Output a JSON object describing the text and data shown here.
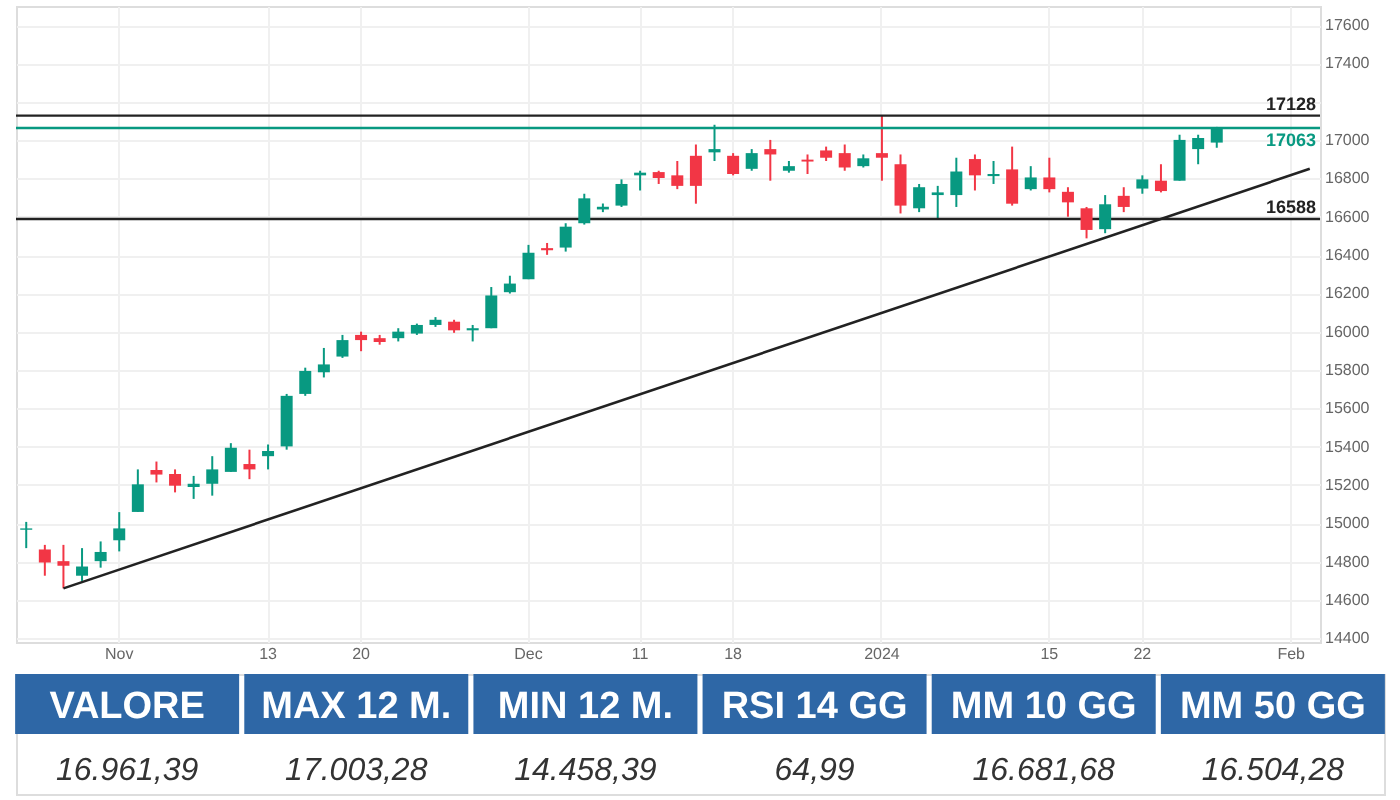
{
  "chart_data": [
    {
      "type": "candlestick",
      "categories": [
        null,
        null,
        null,
        null,
        null,
        "Nov",
        null,
        null,
        null,
        null,
        null,
        null,
        null,
        "13",
        null,
        null,
        null,
        null,
        "20",
        null,
        null,
        null,
        null,
        null,
        null,
        null,
        null,
        "Dec",
        null,
        null,
        null,
        null,
        null,
        "11",
        null,
        null,
        null,
        null,
        "18",
        null,
        null,
        null,
        null,
        null,
        null,
        null,
        "2024",
        null,
        null,
        null,
        null,
        null,
        null,
        null,
        null,
        "15",
        null,
        null,
        null,
        null,
        "22",
        null,
        null,
        null,
        null,
        null,
        null,
        null,
        "Feb",
        null
      ],
      "ohlc": [
        [
          14966,
          15007,
          14870,
          14973
        ],
        [
          14863,
          14887,
          14726,
          14795
        ],
        [
          14802,
          14887,
          14660,
          14778
        ],
        [
          14726,
          14870,
          14699,
          14774
        ],
        [
          14802,
          14905,
          14768,
          14850
        ],
        [
          14911,
          15058,
          14853,
          14973
        ],
        [
          15059,
          15281,
          15059,
          15203
        ],
        [
          15278,
          15322,
          15213,
          15254
        ],
        [
          15257,
          15281,
          15161,
          15196
        ],
        [
          15189,
          15247,
          15127,
          15206
        ],
        [
          15206,
          15350,
          15144,
          15281
        ],
        [
          15268,
          15418,
          15268,
          15394
        ],
        [
          15309,
          15384,
          15230,
          15281
        ],
        [
          15350,
          15411,
          15281,
          15377
        ],
        [
          15401,
          15675,
          15384,
          15665
        ],
        [
          15675,
          15812,
          15665,
          15795
        ],
        [
          15788,
          15915,
          15761,
          15829
        ],
        [
          15870,
          15983,
          15863,
          15956
        ],
        [
          15983,
          16000,
          15898,
          15956
        ],
        [
          15966,
          15983,
          15932,
          15946
        ],
        [
          15966,
          16018,
          15949,
          16000
        ],
        [
          15990,
          16042,
          15983,
          16035
        ],
        [
          16035,
          16076,
          16025,
          16062
        ],
        [
          16052,
          16062,
          15994,
          16007
        ],
        [
          16007,
          16035,
          15949,
          16018
        ],
        [
          16018,
          16233,
          16018,
          16189
        ],
        [
          16206,
          16292,
          16199,
          16251
        ],
        [
          16274,
          16453,
          16274,
          16412
        ],
        [
          16436,
          16463,
          16401,
          16425
        ],
        [
          16439,
          16566,
          16418,
          16548
        ],
        [
          16566,
          16720,
          16559,
          16696
        ],
        [
          16638,
          16669,
          16624,
          16652
        ],
        [
          16658,
          16795,
          16651,
          16771
        ],
        [
          16816,
          16840,
          16737,
          16830
        ],
        [
          16833,
          16840,
          16771,
          16802
        ],
        [
          16816,
          16891,
          16744,
          16761
        ],
        [
          16918,
          16977,
          16668,
          16761
        ],
        [
          16936,
          17080,
          16891,
          16953
        ],
        [
          16918,
          16932,
          16816,
          16823
        ],
        [
          16850,
          16953,
          16840,
          16932
        ],
        [
          16953,
          17001,
          16788,
          16925
        ],
        [
          16840,
          16891,
          16830,
          16864
        ],
        [
          16898,
          16925,
          16823,
          16888
        ],
        [
          16946,
          16966,
          16891,
          16908
        ],
        [
          16932,
          16977,
          16840,
          16857
        ],
        [
          16864,
          16925,
          16857,
          16905
        ],
        [
          16932,
          17131,
          16788,
          16908
        ],
        [
          16874,
          16925,
          16617,
          16658
        ],
        [
          16644,
          16771,
          16624,
          16754
        ],
        [
          16713,
          16761,
          16590,
          16727
        ],
        [
          16713,
          16908,
          16651,
          16836
        ],
        [
          16901,
          16925,
          16737,
          16816
        ],
        [
          16812,
          16891,
          16771,
          16823
        ],
        [
          16847,
          16966,
          16658,
          16668
        ],
        [
          16744,
          16864,
          16737,
          16805
        ],
        [
          16805,
          16908,
          16727,
          16744
        ],
        [
          16730,
          16754,
          16600,
          16675
        ],
        [
          16644,
          16651,
          16487,
          16531
        ],
        [
          16535,
          16713,
          16514,
          16665
        ],
        [
          16709,
          16754,
          16624,
          16651
        ],
        [
          16747,
          16816,
          16720,
          16795
        ],
        [
          16788,
          16874,
          16727,
          16734
        ],
        [
          16788,
          17028,
          16788,
          17001
        ],
        [
          16953,
          17028,
          16874,
          17011
        ],
        [
          16987,
          17069,
          16960,
          17063
        ],
        null,
        null,
        null,
        null,
        null
      ],
      "colors": [
        "#089981",
        "#f23645",
        "#f23645",
        "#089981",
        "#089981",
        "#089981",
        "#089981",
        "#f23645",
        "#f23645",
        "#089981",
        "#089981",
        "#089981",
        "#f23645",
        "#089981",
        "#089981",
        "#089981",
        "#089981",
        "#089981",
        "#f23645",
        "#f23645",
        "#089981",
        "#089981",
        "#089981",
        "#f23645",
        "#089981",
        "#089981",
        "#089981",
        "#089981",
        "#f23645",
        "#089981",
        "#089981",
        "#089981",
        "#089981",
        "#089981",
        "#f23645",
        "#f23645",
        "#f23645",
        "#089981",
        "#f23645",
        "#089981",
        "#f23645",
        "#089981",
        "#f23645",
        "#f23645",
        "#f23645",
        "#089981",
        "#f23645",
        "#f23645",
        "#089981",
        "#089981",
        "#089981",
        "#f23645",
        "#089981",
        "#f23645",
        "#089981",
        "#f23645",
        "#f23645",
        "#f23645",
        "#089981",
        "#f23645",
        "#089981",
        "#f23645",
        "#089981",
        "#089981",
        "#089981",
        null,
        null,
        null,
        null,
        null
      ],
      "series": [
        {
          "type": "line",
          "color": "#222222",
          "values": [
            null,
            null,
            14660,
            null,
            null,
            null,
            null,
            null,
            null,
            null,
            null,
            null,
            null,
            null,
            null,
            null,
            null,
            null,
            null,
            null,
            null,
            null,
            null,
            null,
            null,
            null,
            null,
            null,
            null,
            null,
            null,
            null,
            null,
            null,
            null,
            null,
            null,
            null,
            null,
            null,
            null,
            null,
            null,
            null,
            null,
            null,
            null,
            null,
            null,
            null,
            null,
            null,
            null,
            null,
            null,
            null,
            null,
            null,
            null,
            null,
            null,
            null,
            null,
            null,
            null,
            null,
            null,
            null,
            null,
            16850
          ]
        }
      ],
      "ylim": [
        14380,
        17700
      ],
      "yticks": [
        14400,
        14600,
        14800,
        15000,
        15200,
        15400,
        15600,
        15800,
        16000,
        16200,
        16400,
        16600,
        16800,
        17000,
        {
          "value": 17200,
          "label": null
        },
        17400,
        17600
      ],
      "ref_lines": [
        {
          "axis": "y",
          "value": 17128,
          "label": "17128",
          "color": "#222222"
        },
        {
          "axis": "y",
          "value": 17063,
          "label": "17063",
          "color": "#089981"
        },
        {
          "axis": "y",
          "value": 16588,
          "label": "16588",
          "color": "#222222"
        }
      ],
      "grid": true
    },
    {
      "type": "other",
      "categories": [
        "VALORE",
        "MAX 12 M.",
        "MIN 12 M.",
        "RSI 14 GG",
        "MM 10 GG",
        "MM 50 GG"
      ],
      "value_labels": [
        "16.961,39",
        "17.003,28",
        "14.458,39",
        "64,99",
        "16.681,68",
        "16.504,28"
      ],
      "colors": [
        "#2e67a6",
        "#2e67a6",
        "#2e67a6",
        "#2e67a6",
        "#2e67a6",
        "#2e67a6"
      ]
    }
  ]
}
